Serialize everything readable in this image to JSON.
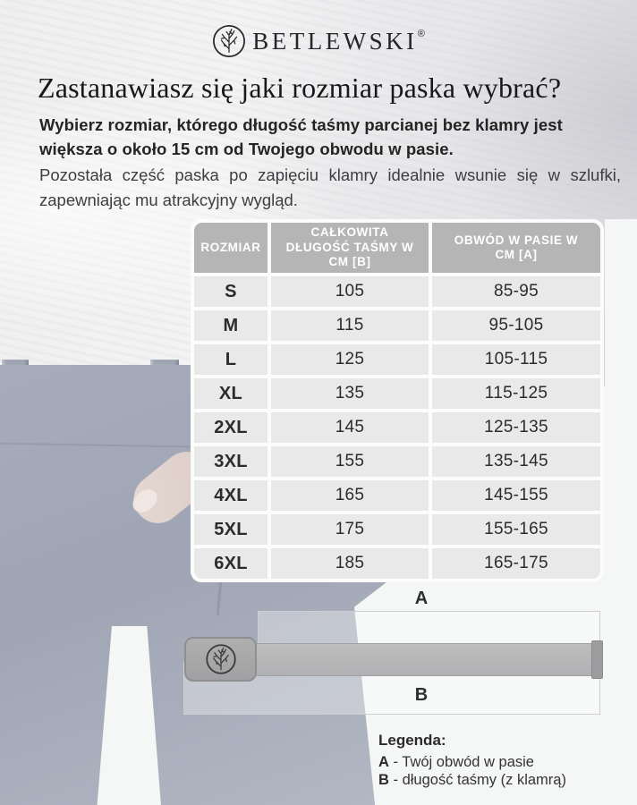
{
  "brand": {
    "name": "BETLEWSKI",
    "registered_mark": "®",
    "logo_icon": "tree-in-circle"
  },
  "title": "Zastanawiasz się jaki rozmiar paska wybrać?",
  "intro": {
    "bold_text": "Wybierz rozmiar, którego długość taśmy parcianej bez klamry jest większa o około 15 cm od Twojego obwodu w pasie.",
    "regular_text": "Pozostała część paska po zapięciu klamry idealnie wsunie się w szlufki, zapewniając mu atrakcyjny wygląd."
  },
  "size_table": {
    "headers": [
      "ROZMIAR",
      "CAŁKOWITA DŁUGOŚĆ TAŚMY W CM [B]",
      "OBWÓD W PASIE W CM [A]"
    ],
    "rows": [
      [
        "S",
        "105",
        "85-95"
      ],
      [
        "M",
        "115",
        "95-105"
      ],
      [
        "L",
        "125",
        "105-115"
      ],
      [
        "XL",
        "135",
        "115-125"
      ],
      [
        "2XL",
        "145",
        "125-135"
      ],
      [
        "3XL",
        "155",
        "135-145"
      ],
      [
        "4XL",
        "165",
        "145-155"
      ],
      [
        "5XL",
        "175",
        "155-165"
      ],
      [
        "6XL",
        "185",
        "165-175"
      ]
    ]
  },
  "diagram": {
    "label_a": "A",
    "label_b": "B",
    "buckle_icon": "tree-in-circle"
  },
  "legend": {
    "heading": "Legenda:",
    "items": [
      {
        "key": "A",
        "text": "- Twój obwód w pasie"
      },
      {
        "key": "B",
        "text": "- długość taśmy (z klamrą)"
      }
    ]
  },
  "colors": {
    "table_header_bg": "#b5b5b5",
    "table_cell_bg": "#e9e9ea",
    "table_panel_bg": "#fcfcfd",
    "text_dark": "#242425",
    "diagram_grey": "#b1b1b3",
    "photo_belt": "#3a3d44",
    "photo_jeans": "#a6acba"
  }
}
